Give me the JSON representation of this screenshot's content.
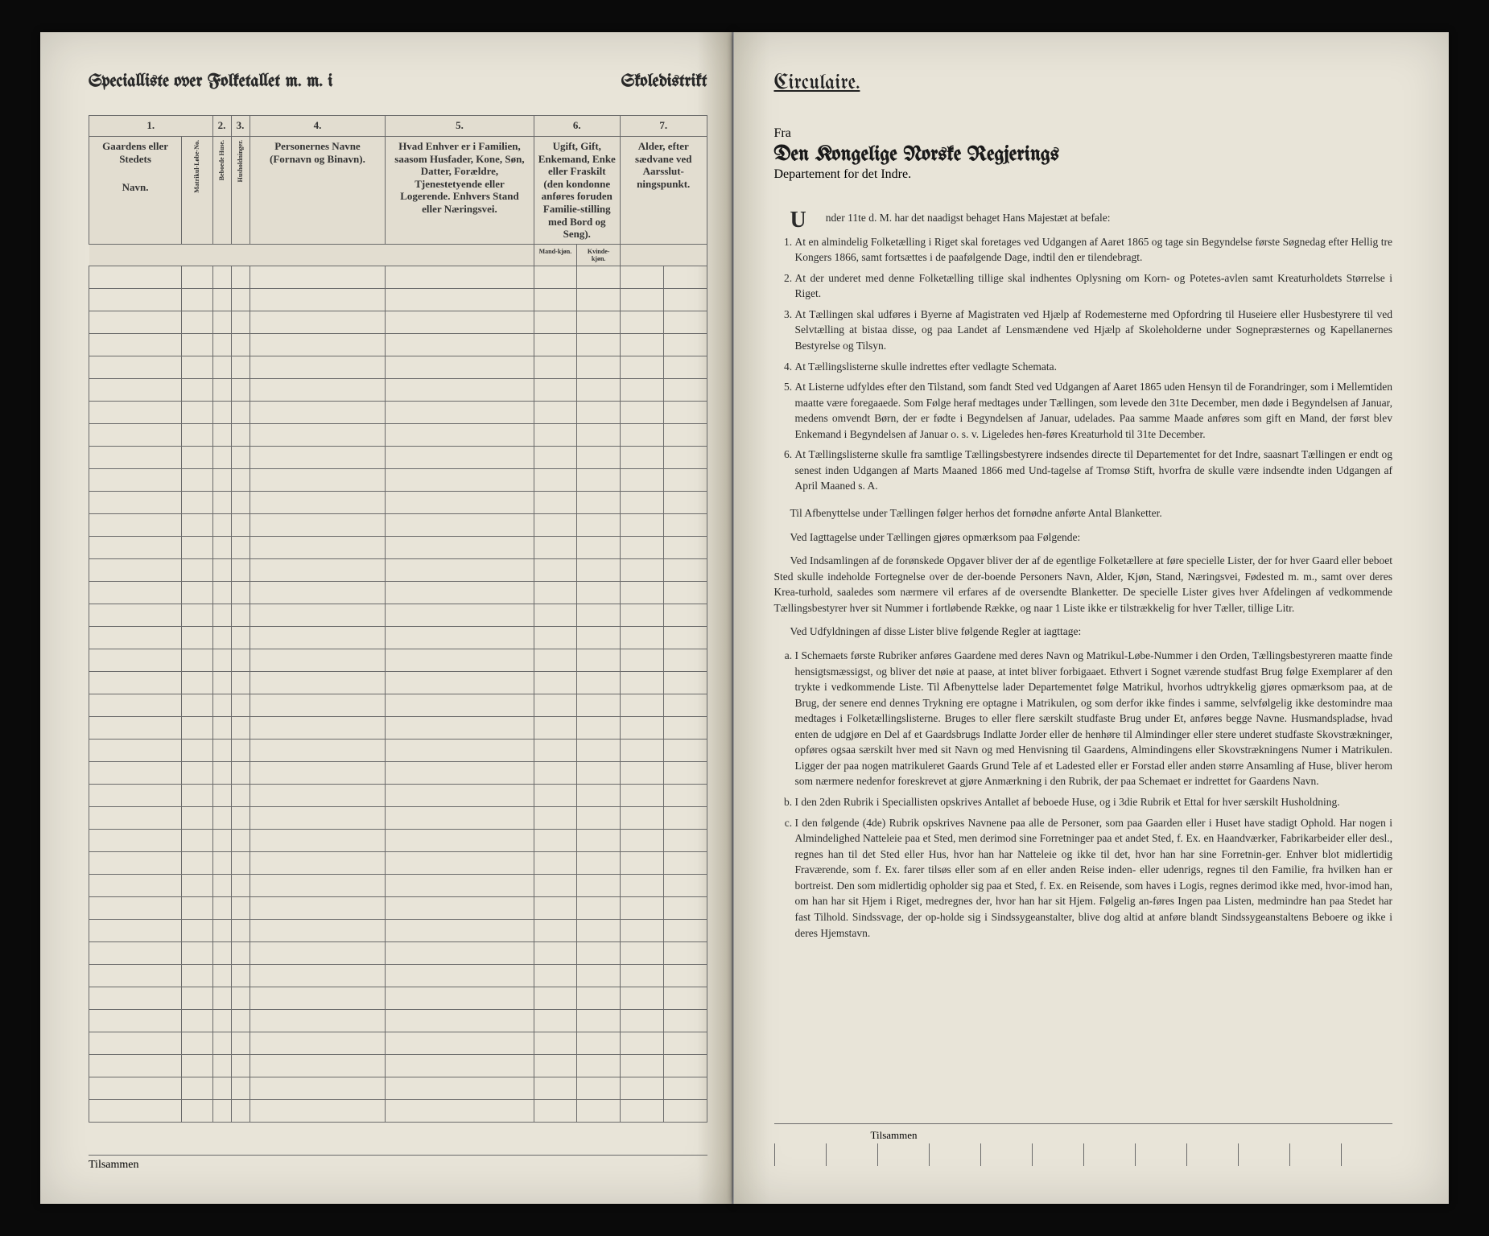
{
  "left_page": {
    "header_left": "Specialliste over Folketallet m. m. i",
    "header_right": "Skoledistrikt",
    "col_numbers": [
      "1.",
      "2.",
      "3.",
      "4.",
      "5.",
      "6.",
      "7."
    ],
    "col1": {
      "top": "Gaardens eller Stedets",
      "bottom": "Navn.",
      "sub": "Matrikul-Løbe-No."
    },
    "col2": "Beboede Huse.",
    "col3": "Husholdninger.",
    "col4": "Personernes Navne (Fornavn og Binavn).",
    "col5": "Hvad Enhver er i Familien, saasom Husfader, Kone, Søn, Datter, Forældre, Tjenestetyende eller Logerende. Enhvers Stand eller Næringsvei.",
    "col6": {
      "top": "Ugift, Gift, Enkemand, Enke eller Fraskilt (den kondonne anføres foruden Familie-stilling med Bord og Seng).",
      "sub_m": "Mand-kjøn.",
      "sub_k": "Kvinde-kjøn."
    },
    "col7": "Alder, efter sædvane ved Aarsslut-ningspunkt.",
    "footer": "Tilsammen",
    "row_count": 38,
    "colors": {
      "paper": "#e8e4d8",
      "rule": "#6a6a6a",
      "ink": "#2a2a2a"
    }
  },
  "right_page": {
    "circulaire": "Circulaire.",
    "fra": "Fra",
    "dept_title": "Den Kongelige Norske Regjerings",
    "dept_sub": "Departement for det Indre.",
    "intro": "Under 11te d. M. har det naadigst behaget Hans Majestæt at befale:",
    "items": [
      "At en almindelig Folketælling i Riget skal foretages ved Udgangen af Aaret 1865 og tage sin Begyndelse første Søgnedag efter Hellig tre Kongers 1866, samt fortsættes i de paafølgende Dage, indtil den er tilendebragt.",
      "At der underet med denne Folketælling tillige skal indhentes Oplysning om Korn- og Potetes-avlen samt Kreaturholdets Størrelse i Riget.",
      "At Tællingen skal udføres i Byerne af Magistraten ved Hjælp af Rodemesterne med Opfordring til Huseiere eller Husbestyrere til ved Selvtælling at bistaa disse, og paa Landet af Lensmændene ved Hjælp af Skoleholderne under Sognepræsternes og Kapellanernes Bestyrelse og Tilsyn.",
      "At Tællingslisterne skulle indrettes efter vedlagte Schemata.",
      "At Listerne udfyldes efter den Tilstand, som fandt Sted ved Udgangen af Aaret 1865 uden Hensyn til de Forandringer, som i Mellemtiden maatte være foregaaede. Som Følge heraf medtages under Tællingen, som levede den 31te December, men døde i Begyndelsen af Januar, medens omvendt Børn, der er fødte i Begyndelsen af Januar, udelades. Paa samme Maade anføres som gift en Mand, der først blev Enkemand i Begyndelsen af Januar o. s. v. Ligeledes hen-føres Kreaturhold til 31te December.",
      "At Tællingslisterne skulle fra samtlige Tællingsbestyrere indsendes directe til Departementet for det Indre, saasnart Tællingen er endt og senest inden Udgangen af Marts Maaned 1866 med Und-tagelse af Tromsø Stift, hvorfra de skulle være indsendte inden Udgangen af April Maaned s. A."
    ],
    "para1": "Til Afbenyttelse under Tællingen følger herhos det fornødne anførte Antal Blanketter.",
    "para2": "Ved Iagttagelse under Tællingen gjøres opmærksom paa Følgende:",
    "para3": "Ved Indsamlingen af de forønskede Opgaver bliver der af de egentlige Folketællere at føre specielle Lister, der for hver Gaard eller beboet Sted skulle indeholde Fortegnelse over de der-boende Personers Navn, Alder, Kjøn, Stand, Næringsvei, Fødested m. m., samt over deres Krea-turhold, saaledes som nærmere vil erfares af de oversendte Blanketter. De specielle Lister gives hver Afdelingen af vedkommende Tællingsbestyrer hver sit Nummer i fortløbende Række, og naar 1 Liste ikke er tilstrækkelig for hver Tæller, tillige Litr.",
    "para4": "Ved Udfyldningen af disse Lister blive følgende Regler at iagttage:",
    "sub_items": [
      "I Schemaets første Rubriker anføres Gaardene med deres Navn og Matrikul-Løbe-Nummer i den Orden, Tællingsbestyreren maatte finde hensigtsmæssigst, og bliver det nøie at paase, at intet bliver forbigaaet. Ethvert i Sognet værende studfast Brug følge Exemplarer af den trykte i vedkommende Liste. Til Afbenyttelse lader Departementet følge Matrikul, hvorhos udtrykkelig gjøres opmærksom paa, at de Brug, der senere end dennes Trykning ere optagne i Matrikulen, og som derfor ikke findes i samme, selvfølgelig ikke destomindre maa medtages i Folketællingslisterne. Bruges to eller flere særskilt studfaste Brug under Et, anføres begge Navne. Husmandspladse, hvad enten de udgjøre en Del af et Gaardsbrugs Indlatte Jorder eller de henhøre til Almindinger eller stere underet studfaste Skovstrækninger, opføres ogsaa særskilt hver med sit Navn og med Henvisning til Gaardens, Almindingens eller Skovstrækningens Numer i Matrikulen. Ligger der paa nogen matrikuleret Gaards Grund Tele af et Ladested eller er Forstad eller anden større Ansamling af Huse, bliver herom som nærmere nedenfor foreskrevet at gjøre Anmærkning i den Rubrik, der paa Schemaet er indrettet for Gaardens Navn.",
      "I den 2den Rubrik i Speciallisten opskrives Antallet af beboede Huse, og i 3die Rubrik et Ettal for hver særskilt Husholdning.",
      "I den følgende (4de) Rubrik opskrives Navnene paa alle de Personer, som paa Gaarden eller i Huset have stadigt Ophold. Har nogen i Almindelighed Natteleie paa et Sted, men derimod sine Forretninger paa et andet Sted, f. Ex. en Haandværker, Fabrikarbeider eller desl., regnes han til det Sted eller Hus, hvor han har Natteleie og ikke til det, hvor han har sine Forretnin-ger. Enhver blot midlertidig Fraværende, som f. Ex. farer tilsøs eller som af en eller anden Reise inden- eller udenrigs, regnes til den Familie, fra hvilken han er bortreist. Den som midlertidig opholder sig paa et Sted, f. Ex. en Reisende, som haves i Logis, regnes derimod ikke med, hvor-imod han, om han har sit Hjem i Riget, medregnes der, hvor han har sit Hjem. Følgelig an-føres Ingen paa Listen, medmindre han paa Stedet har fast Tilhold. Sindssvage, der op-holde sig i Sindssygeanstalter, blive dog altid at anføre blandt Sindssygeanstaltens Beboere og ikke i deres Hjemstavn."
    ],
    "footer": "Tilsammen",
    "colors": {
      "paper": "#e8e4d8",
      "ink": "#2a2a2a"
    }
  }
}
